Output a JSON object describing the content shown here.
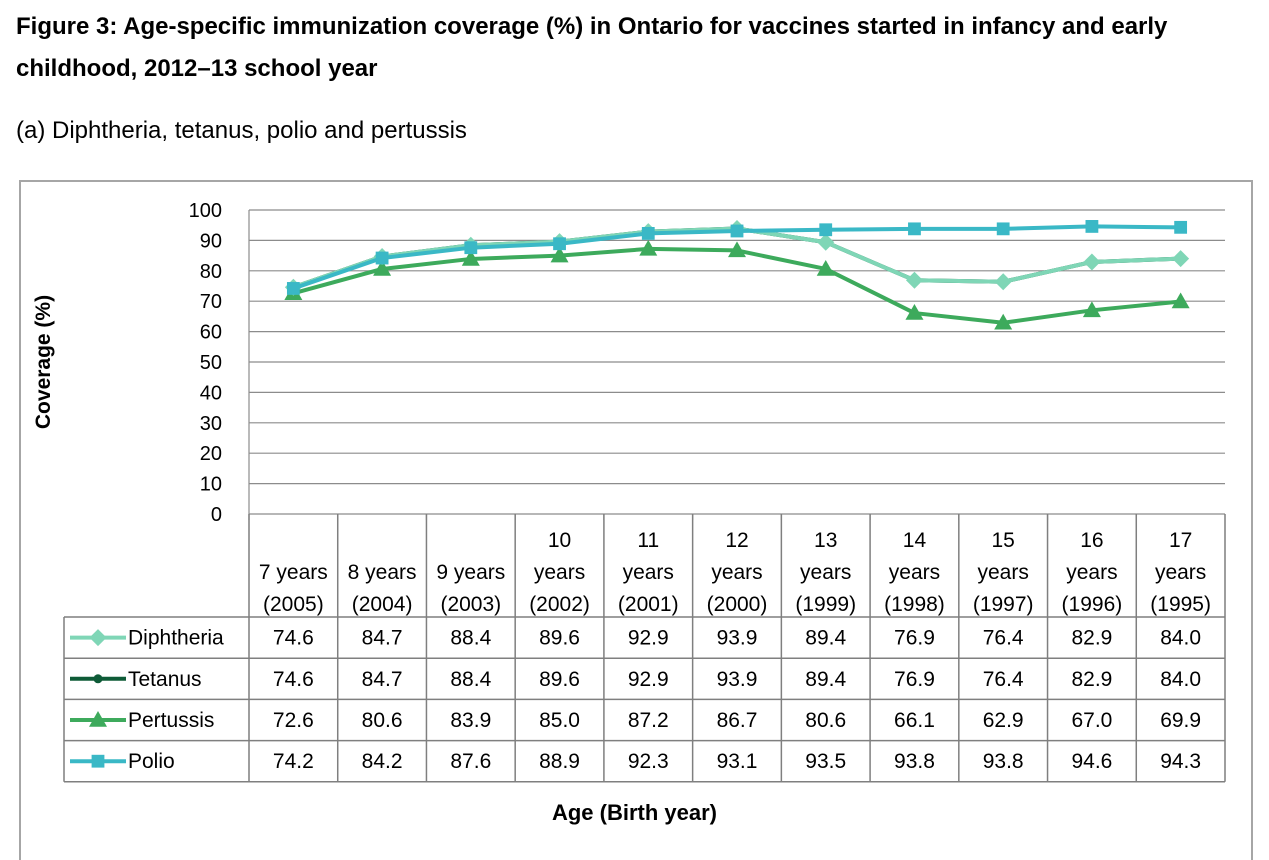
{
  "figure": {
    "title": "Figure 3: Age-specific immunization coverage (%) in Ontario for vaccines started in infancy and early childhood, 2012–13 school year",
    "subtitle": "(a)  Diphtheria, tetanus, polio and pertussis"
  },
  "chart_data": {
    "type": "line",
    "title": "",
    "ylabel": "Coverage (%)",
    "xlabel": "Age (Birth year)",
    "ylim": [
      0,
      100
    ],
    "yticks": [
      0,
      10,
      20,
      30,
      40,
      50,
      60,
      70,
      80,
      90,
      100
    ],
    "grid": true,
    "legend": "data table below chart",
    "categories": [
      [
        "7 years",
        "(2005)"
      ],
      [
        "8 years",
        "(2004)"
      ],
      [
        "9 years",
        "(2003)"
      ],
      [
        "10",
        "years",
        "(2002)"
      ],
      [
        "11",
        "years",
        "(2001)"
      ],
      [
        "12",
        "years",
        "(2000)"
      ],
      [
        "13",
        "years",
        "(1999)"
      ],
      [
        "14",
        "years",
        "(1998)"
      ],
      [
        "15",
        "years",
        "(1997)"
      ],
      [
        "16",
        "years",
        "(1996)"
      ],
      [
        "17",
        "years",
        "(1995)"
      ]
    ],
    "series": [
      {
        "name": "Diphtheria",
        "color": "#7fd6b6",
        "marker": "diamond",
        "values": [
          74.6,
          84.7,
          88.4,
          89.6,
          92.9,
          93.9,
          89.4,
          76.9,
          76.4,
          82.9,
          84.0
        ],
        "labels": [
          "74.6",
          "84.7",
          "88.4",
          "89.6",
          "92.9",
          "93.9",
          "89.4",
          "76.9",
          "76.4",
          "82.9",
          "84.0"
        ]
      },
      {
        "name": "Tetanus",
        "color": "#0e5b37",
        "marker": "circle",
        "values": [
          74.6,
          84.7,
          88.4,
          89.6,
          92.9,
          93.9,
          89.4,
          76.9,
          76.4,
          82.9,
          84.0
        ],
        "labels": [
          "74.6",
          "84.7",
          "88.4",
          "89.6",
          "92.9",
          "93.9",
          "89.4",
          "76.9",
          "76.4",
          "82.9",
          "84.0"
        ]
      },
      {
        "name": "Pertussis",
        "color": "#3daa5c",
        "marker": "triangle",
        "values": [
          72.6,
          80.6,
          83.9,
          85.0,
          87.2,
          86.7,
          80.6,
          66.1,
          62.9,
          67.0,
          69.9
        ],
        "labels": [
          "72.6",
          "80.6",
          "83.9",
          "85.0",
          "87.2",
          "86.7",
          "80.6",
          "66.1",
          "62.9",
          "67.0",
          "69.9"
        ]
      },
      {
        "name": "Polio",
        "color": "#3ab8c6",
        "marker": "square",
        "values": [
          74.2,
          84.2,
          87.6,
          88.9,
          92.3,
          93.1,
          93.5,
          93.8,
          93.8,
          94.6,
          94.3
        ],
        "labels": [
          "74.2",
          "84.2",
          "87.6",
          "88.9",
          "92.3",
          "93.1",
          "93.5",
          "93.8",
          "93.8",
          "94.6",
          "94.3"
        ]
      }
    ]
  }
}
